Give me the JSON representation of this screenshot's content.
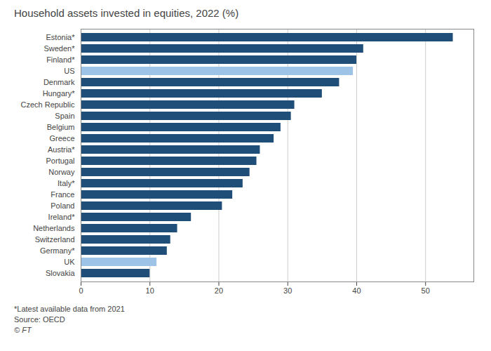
{
  "chart_data": {
    "type": "bar",
    "orientation": "horizontal",
    "title": "Household assets invested in equities, 2022 (%)",
    "annotations": [
      "*Latest available data from 2021",
      "Source: OECD",
      "© FT"
    ],
    "categories": [
      "Estonia*",
      "Sweden*",
      "Finland*",
      "US",
      "Denmark",
      "Hungary*",
      "Czech Republic",
      "Spain",
      "Belgium",
      "Greece",
      "Austria*",
      "Portugal",
      "Norway",
      "Italy*",
      "France",
      "Poland",
      "Ireland*",
      "Netherlands",
      "Switzerland",
      "Germany*",
      "UK",
      "Slovakia"
    ],
    "values": [
      54,
      41,
      40,
      39.5,
      37.5,
      35,
      31,
      30.5,
      29,
      28,
      26,
      25.5,
      24.5,
      23.5,
      22,
      20.5,
      16,
      14,
      13,
      12.5,
      11,
      10
    ],
    "colors": [
      "#1f4e79",
      "#1f4e79",
      "#1f4e79",
      "#9dc3e6",
      "#1f4e79",
      "#1f4e79",
      "#1f4e79",
      "#1f4e79",
      "#1f4e79",
      "#1f4e79",
      "#1f4e79",
      "#1f4e79",
      "#1f4e79",
      "#1f4e79",
      "#1f4e79",
      "#1f4e79",
      "#1f4e79",
      "#1f4e79",
      "#1f4e79",
      "#1f4e79",
      "#9dc3e6",
      "#1f4e79"
    ],
    "xlim": [
      0,
      57
    ],
    "xticks": [
      0,
      10,
      20,
      30,
      40,
      50
    ],
    "grid": true
  }
}
